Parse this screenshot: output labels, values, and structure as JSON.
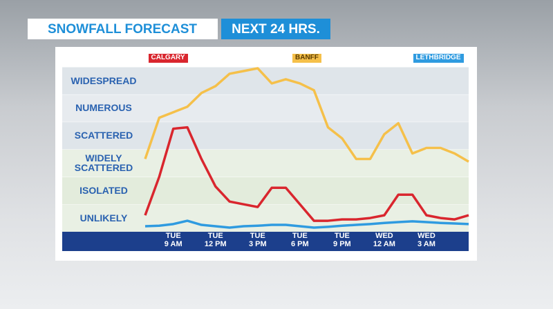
{
  "chart_data": {
    "type": "line",
    "title": "SNOWFALL FORECAST",
    "subtitle": "NEXT 24 HRS.",
    "categories": [
      null,
      null,
      "TUE\n9 AM",
      null,
      null,
      "TUE\n12 PM",
      null,
      null,
      "TUE\n3 PM",
      null,
      null,
      "TUE\n6 PM",
      null,
      null,
      "TUE\n9 PM",
      null,
      null,
      "WED\n12 AM",
      null,
      null,
      "WED\n3 AM",
      null,
      null,
      null
    ],
    "series": [
      {
        "name": "CALGARY",
        "color": "#d9262e",
        "values": [
          0.6,
          2.0,
          3.75,
          3.8,
          2.65,
          1.65,
          1.1,
          1.0,
          0.9,
          1.6,
          1.6,
          1.0,
          0.4,
          0.4,
          0.45,
          0.45,
          0.5,
          0.6,
          1.35,
          1.35,
          0.6,
          0.5,
          0.45,
          0.6
        ]
      },
      {
        "name": "BANFF",
        "color": "#f5c04a",
        "values": [
          2.65,
          4.15,
          4.35,
          4.55,
          5.05,
          5.3,
          5.75,
          5.85,
          5.95,
          5.4,
          5.55,
          5.4,
          5.15,
          3.8,
          3.4,
          2.65,
          2.65,
          3.55,
          3.95,
          2.85,
          3.05,
          3.05,
          2.85,
          2.55
        ]
      },
      {
        "name": "LETHBRIDGE",
        "color": "#2f9be0",
        "values": [
          0.2,
          0.22,
          0.28,
          0.4,
          0.25,
          0.2,
          0.15,
          0.2,
          0.22,
          0.25,
          0.25,
          0.2,
          0.15,
          0.18,
          0.22,
          0.25,
          0.28,
          0.32,
          0.35,
          0.38,
          0.35,
          0.32,
          0.3,
          0.28
        ]
      }
    ],
    "ylim": [
      0,
      6
    ],
    "yticks": [
      {
        "value": 0.5,
        "label": "UNLIKELY"
      },
      {
        "value": 1.5,
        "label": "ISOLATED"
      },
      {
        "value": 2.5,
        "label": "WIDELY\nSCATTERED"
      },
      {
        "value": 3.5,
        "label": "SCATTERED"
      },
      {
        "value": 4.5,
        "label": "NUMEROUS"
      },
      {
        "value": 5.5,
        "label": "WIDESPREAD"
      }
    ],
    "grid": true
  }
}
